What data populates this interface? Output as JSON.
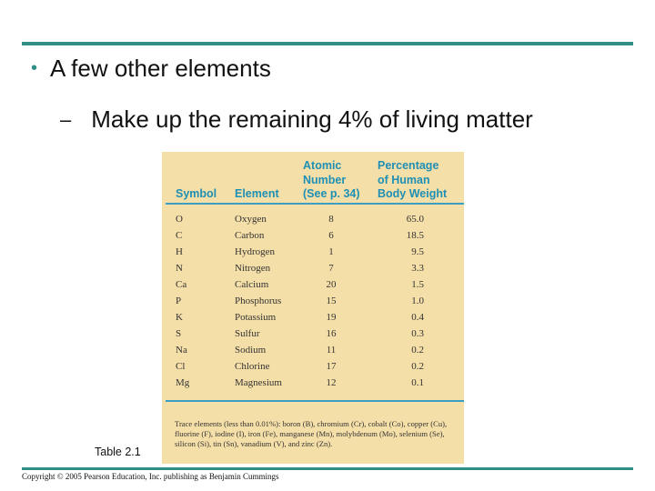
{
  "slide": {
    "bullet": "A few other elements",
    "sub_bullet": "Make up the remaining 4% of living matter",
    "caption": "Table 2.1",
    "copyright": "Copyright © 2005 Pearson Education, Inc. publishing as Benjamin Cummings",
    "accent_color": "#2f8f86"
  },
  "table": {
    "headers": {
      "symbol": "Symbol",
      "element": "Element",
      "atomic_line1": "Atomic",
      "atomic_line2": "Number",
      "atomic_line3": "(See p. 34)",
      "pct_line1": "Percentage",
      "pct_line2": "of Human",
      "pct_line3": "Body Weight"
    },
    "header_color": "#1e8fb5",
    "background_color": "#f5dfa8",
    "rows": [
      {
        "symbol": "O",
        "element": "Oxygen",
        "atomic_number": "8",
        "percentage": "65.0"
      },
      {
        "symbol": "C",
        "element": "Carbon",
        "atomic_number": "6",
        "percentage": "18.5"
      },
      {
        "symbol": "H",
        "element": "Hydrogen",
        "atomic_number": "1",
        "percentage": "9.5"
      },
      {
        "symbol": "N",
        "element": "Nitrogen",
        "atomic_number": "7",
        "percentage": "3.3"
      },
      {
        "symbol": "Ca",
        "element": "Calcium",
        "atomic_number": "20",
        "percentage": "1.5"
      },
      {
        "symbol": "P",
        "element": "Phosphorus",
        "atomic_number": "15",
        "percentage": "1.0"
      },
      {
        "symbol": "K",
        "element": "Potassium",
        "atomic_number": "19",
        "percentage": "0.4"
      },
      {
        "symbol": "S",
        "element": "Sulfur",
        "atomic_number": "16",
        "percentage": "0.3"
      },
      {
        "symbol": "Na",
        "element": "Sodium",
        "atomic_number": "11",
        "percentage": "0.2"
      },
      {
        "symbol": "Cl",
        "element": "Chlorine",
        "atomic_number": "17",
        "percentage": "0.2"
      },
      {
        "symbol": "Mg",
        "element": "Magnesium",
        "atomic_number": "12",
        "percentage": "0.1"
      }
    ],
    "footnote": "Trace elements (less than 0.01%): boron (B), chromium (Cr), cobalt (Co), copper (Cu), fluorine (F), iodine (I), iron (Fe), manganese (Mn), molybdenum (Mo), selenium (Se), silicon (Si), tin (Sn), vanadium (V), and zinc (Zn)."
  }
}
